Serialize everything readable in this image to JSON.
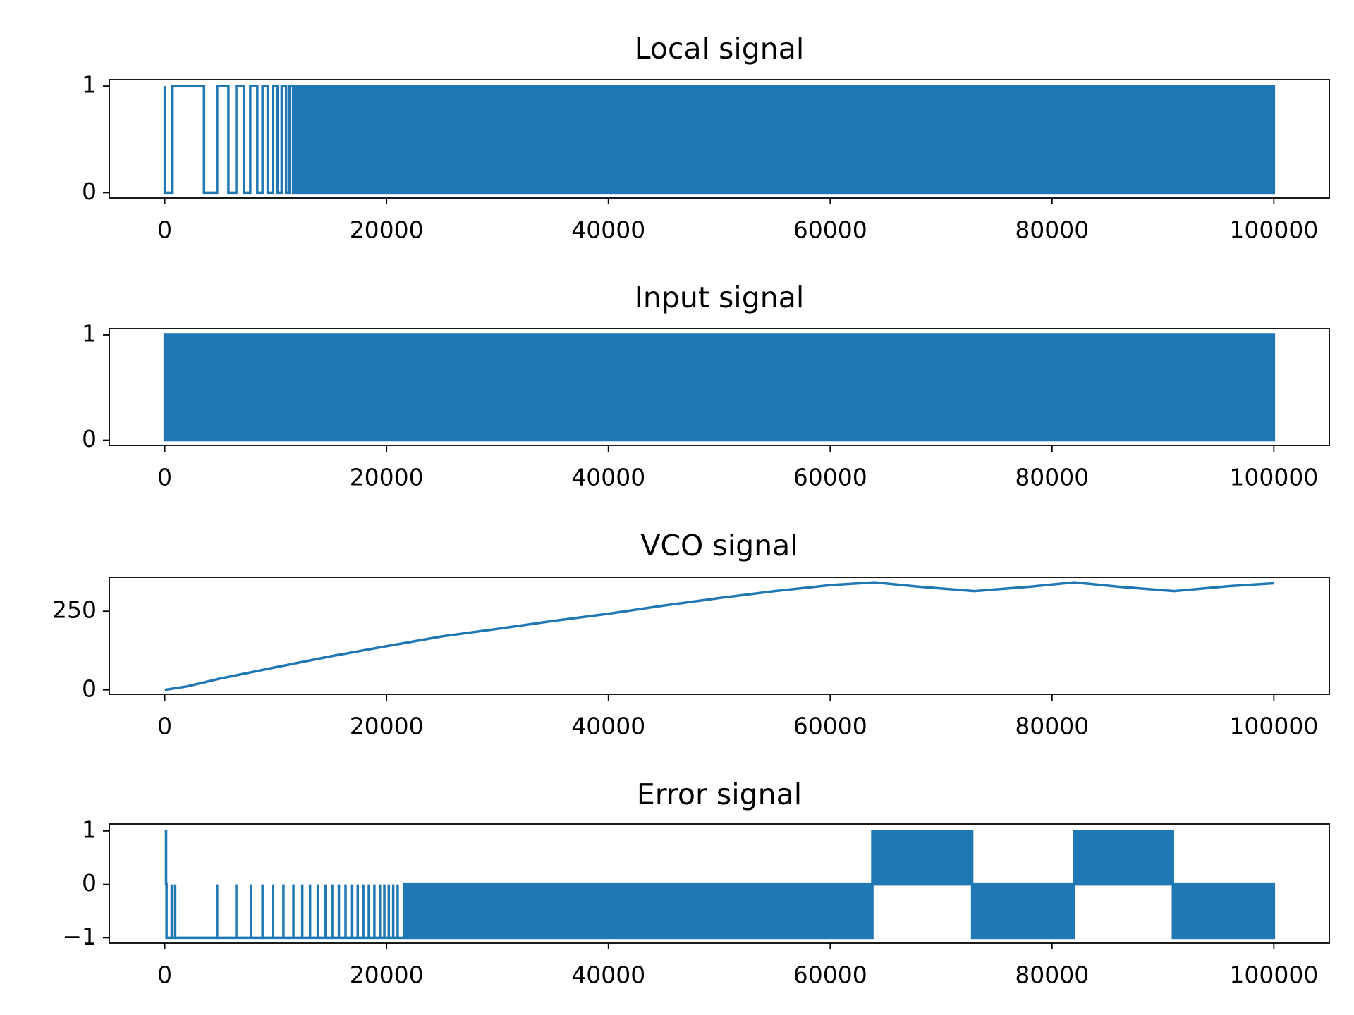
{
  "chart_data": [
    {
      "type": "line",
      "title": "Local signal",
      "color": "#1f77b4",
      "x": [
        0,
        0,
        700,
        700,
        3540,
        3540,
        4720,
        4720,
        5740,
        5740,
        6450,
        6450,
        7160,
        7160,
        7710,
        7710,
        8340,
        8340,
        8810,
        8810,
        9280,
        9280,
        9760,
        9760,
        10150,
        10150,
        10540,
        10540,
        10940,
        10940,
        11250,
        11250,
        11570
      ],
      "values": [
        1,
        0,
        0,
        1,
        1,
        0,
        0,
        1,
        1,
        0,
        0,
        1,
        1,
        0,
        0,
        1,
        1,
        0,
        0,
        1,
        1,
        0,
        0,
        1,
        1,
        0,
        0,
        1,
        1,
        0,
        0,
        1,
        1
      ],
      "bands": [
        {
          "x": [
            11570,
            100000
          ],
          "y": [
            0,
            1
          ]
        }
      ],
      "xlim": [
        -5000,
        105000
      ],
      "ylim": [
        -0.05,
        1.06
      ],
      "xticks": [
        0,
        20000,
        40000,
        60000,
        80000,
        100000
      ],
      "yticks": [
        0,
        1
      ]
    },
    {
      "type": "line",
      "title": "Input signal",
      "color": "#1f77b4",
      "bands": [
        {
          "x": [
            0,
            100000
          ],
          "y": [
            0,
            1
          ]
        }
      ],
      "xlim": [
        -5000,
        105000
      ],
      "ylim": [
        -0.05,
        1.06
      ],
      "xticks": [
        0,
        20000,
        40000,
        60000,
        80000,
        100000
      ],
      "yticks": [
        0,
        1
      ]
    },
    {
      "type": "line",
      "title": "VCO signal",
      "color": "#1f77b4",
      "x": [
        0,
        2000,
        5000,
        10000,
        15000,
        20000,
        25000,
        30000,
        35000,
        40000,
        45000,
        50000,
        55000,
        60000,
        64000,
        68000,
        73000,
        78000,
        82000,
        86000,
        91000,
        96000,
        100000
      ],
      "values": [
        0,
        11,
        36,
        72,
        107,
        139,
        170,
        194,
        219,
        242,
        268,
        292,
        314,
        333,
        342,
        328,
        314,
        328,
        342,
        328,
        314,
        330,
        339
      ],
      "xlim": [
        -5000,
        105000
      ],
      "ylim": [
        -14,
        358
      ],
      "xticks": [
        0,
        20000,
        40000,
        60000,
        80000,
        100000
      ],
      "yticks": [
        0,
        250
      ]
    },
    {
      "type": "line",
      "title": "Error signal",
      "color": "#1f77b4",
      "x": [
        0,
        120,
        120,
        160,
        160,
        21600
      ],
      "values": [
        1,
        1,
        0,
        0,
        -1,
        -1
      ],
      "pulses": {
        "x": [
          630,
          940,
          4720,
          6450,
          7790,
          8810,
          9760,
          10700,
          11600,
          12400,
          13100,
          13800,
          14500,
          15100,
          15700,
          16300,
          16900,
          17400,
          17900,
          18400,
          18900,
          19400,
          19800,
          20200,
          20600,
          21000
        ],
        "base": -1,
        "top": 0
      },
      "bands": [
        {
          "x": [
            21600,
            63800
          ],
          "y": [
            -1,
            0
          ]
        },
        {
          "x": [
            63800,
            72800
          ],
          "y": [
            0,
            1
          ]
        },
        {
          "x": [
            72800,
            82000
          ],
          "y": [
            -1,
            0
          ]
        },
        {
          "x": [
            82000,
            90900
          ],
          "y": [
            0,
            1
          ]
        },
        {
          "x": [
            90900,
            100000
          ],
          "y": [
            -1,
            0
          ]
        }
      ],
      "xlim": [
        -5000,
        105000
      ],
      "ylim": [
        -1.1,
        1.13
      ],
      "xticks": [
        0,
        20000,
        40000,
        60000,
        80000,
        100000
      ],
      "yticks": [
        {
          "value": -1,
          "label": "−1"
        },
        0,
        1
      ]
    }
  ]
}
